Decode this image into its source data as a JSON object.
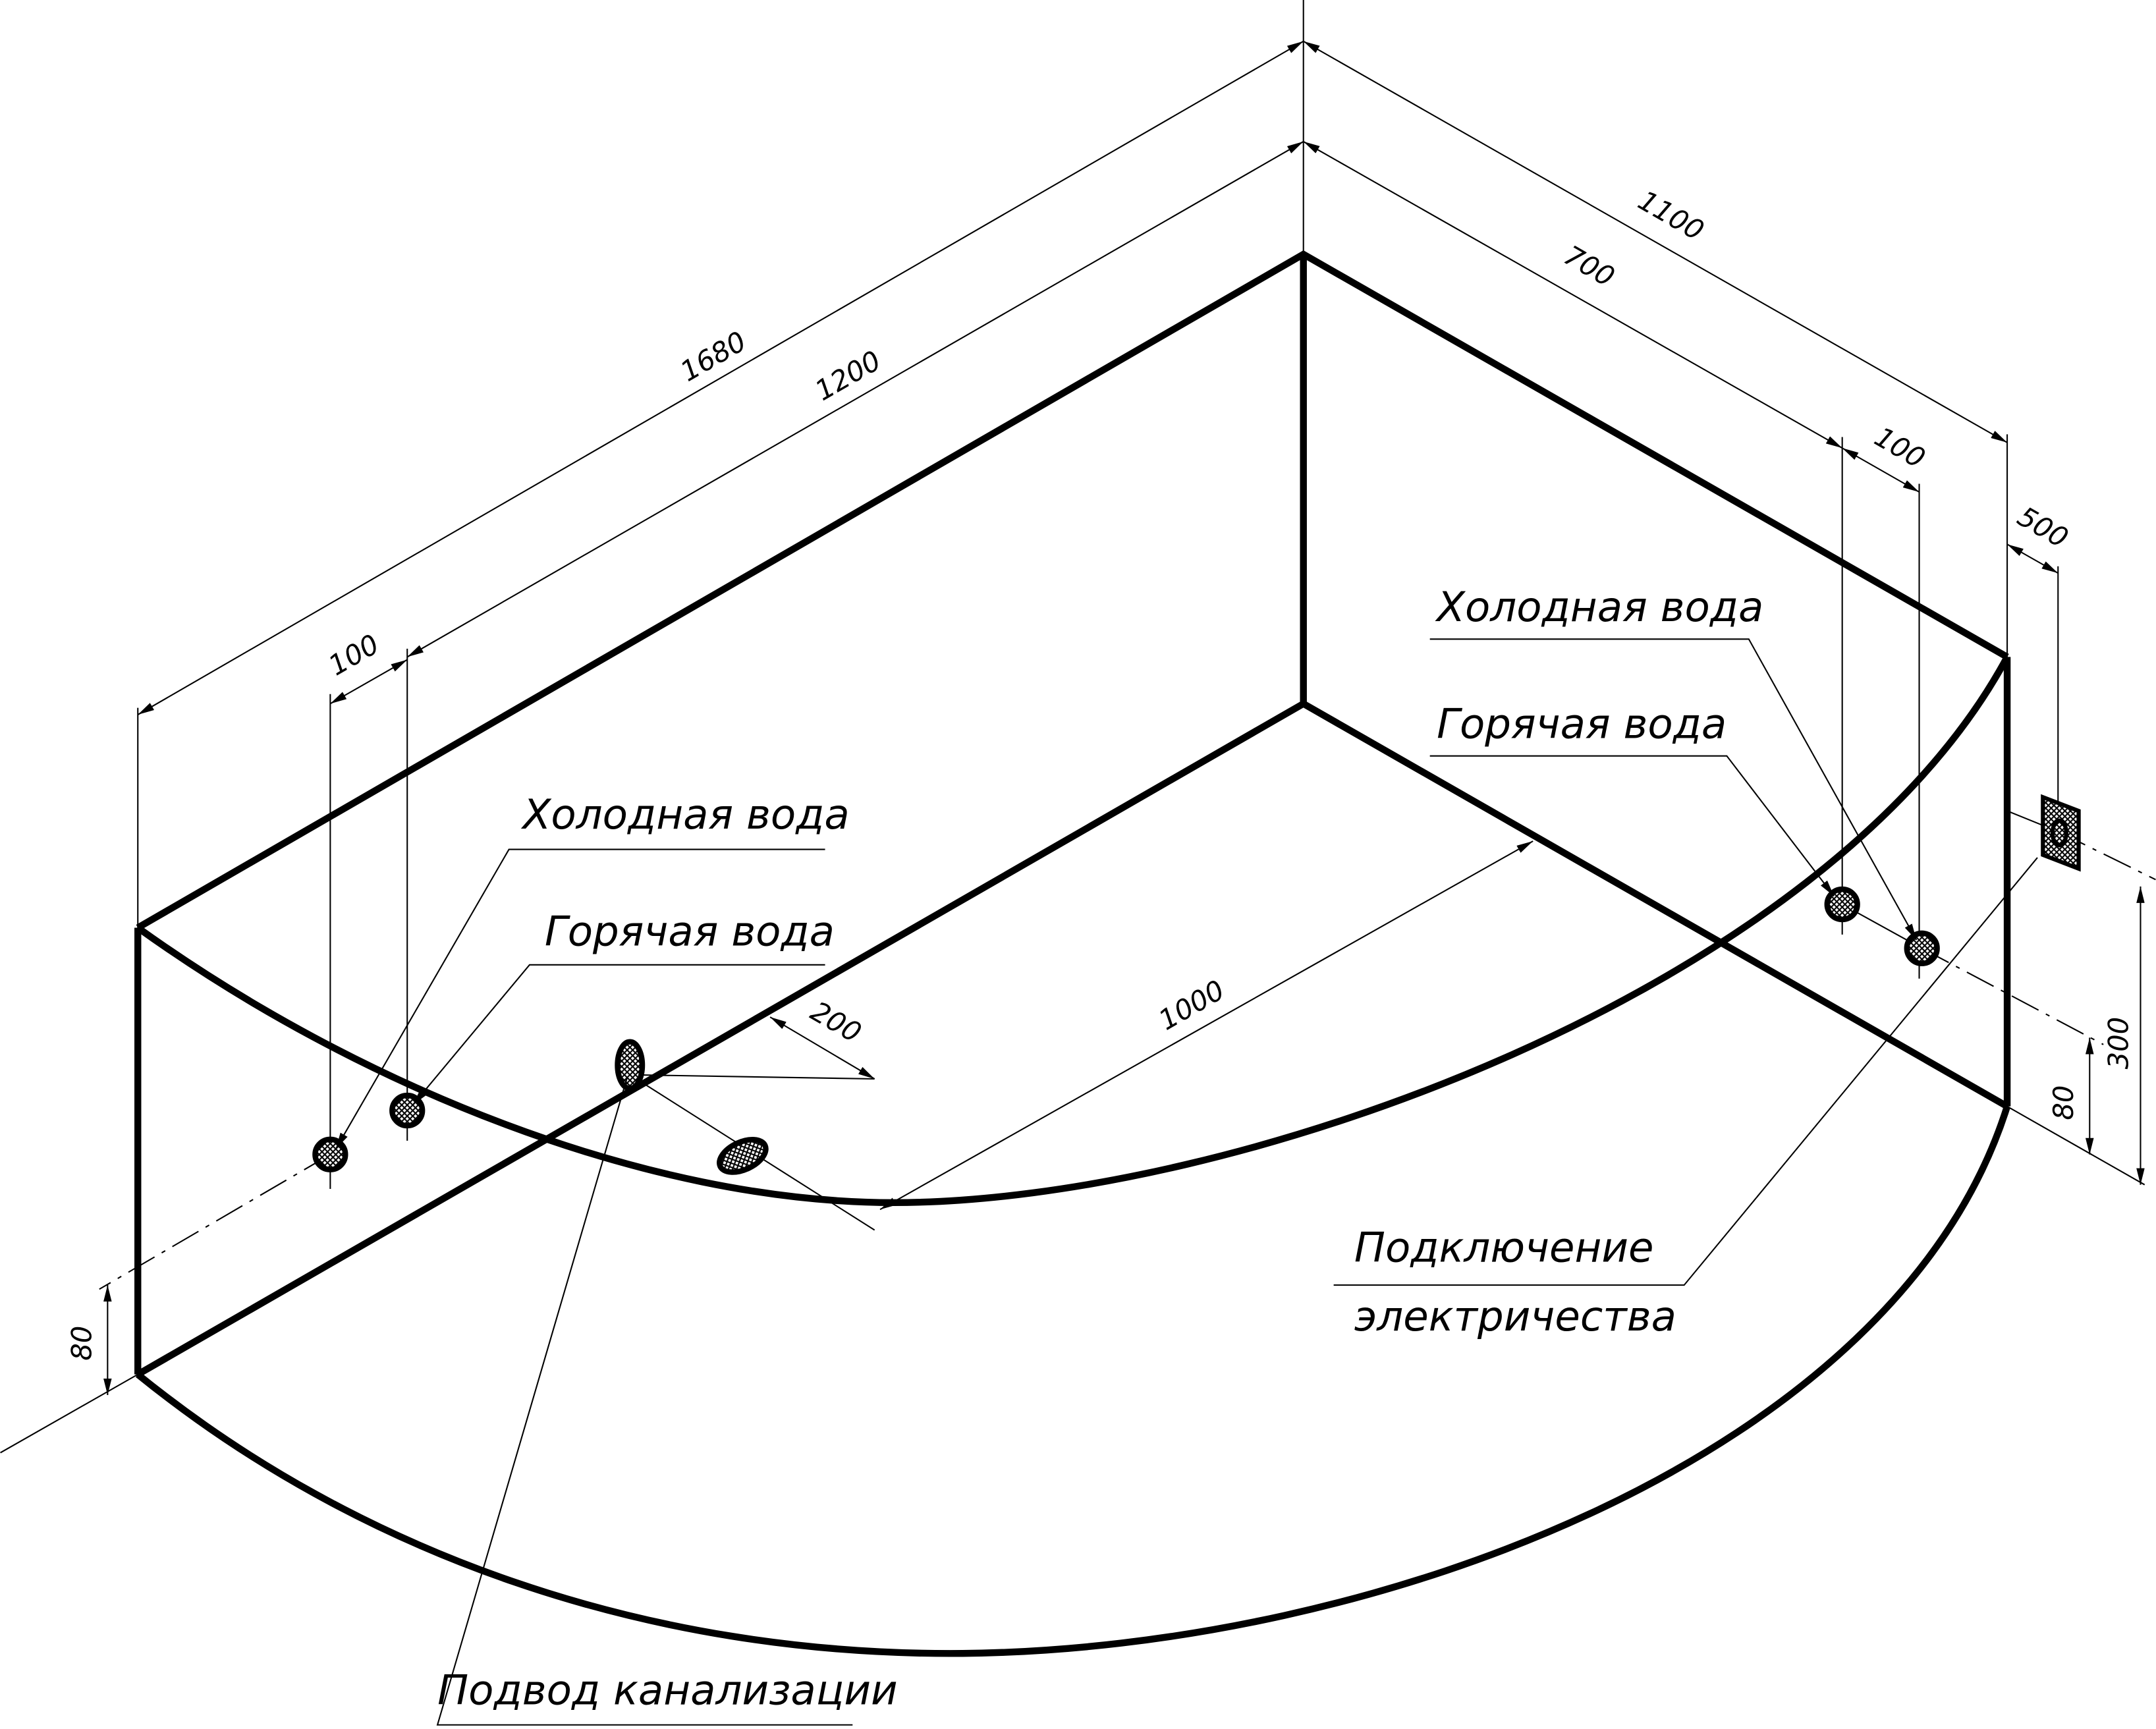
{
  "labels": {
    "cold_left": "Холодная вода",
    "hot_left": "Горячая вода",
    "cold_right": "Холодная вода",
    "hot_right": "Горячая вода",
    "electric_1": "Подключение",
    "electric_2": "электричества",
    "drain": "Подвод канализации"
  },
  "dimensions": {
    "d1680": "1680",
    "d1200": "1200",
    "d100_left": "100",
    "d1100": "1100",
    "d700": "700",
    "d100_right": "100",
    "d500": "500",
    "d1000": "1000",
    "d200": "200",
    "d80_left": "80",
    "d80_right": "80",
    "d300": "300"
  },
  "colors": {
    "line": "#000000",
    "background": "#ffffff"
  }
}
